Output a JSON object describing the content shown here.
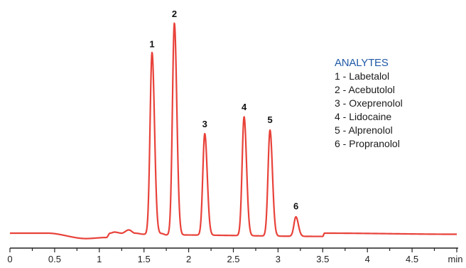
{
  "chart_data": {
    "type": "line",
    "title": "",
    "xlabel": "",
    "ylabel": "",
    "x_unit": "min",
    "xlim": [
      0,
      5
    ],
    "x_ticks": [
      "0",
      "0.5",
      "1",
      "1.5",
      "2",
      "2.5",
      "3",
      "3.5",
      "4",
      "4.5",
      "min"
    ],
    "y_scale": "relative",
    "grid": false,
    "line_color": "#e8423a",
    "baseline": 0.02,
    "baseline_points": [
      {
        "x": 0.0,
        "y": 0.02
      },
      {
        "x": 0.42,
        "y": 0.02
      },
      {
        "x": 0.85,
        "y": -0.005
      },
      {
        "x": 1.08,
        "y": 0.0
      },
      {
        "x": 1.12,
        "y": 0.02
      },
      {
        "x": 1.17,
        "y": 0.025
      },
      {
        "x": 1.25,
        "y": 0.02
      },
      {
        "x": 1.33,
        "y": 0.035
      },
      {
        "x": 1.4,
        "y": 0.02
      },
      {
        "x": 1.5,
        "y": 0.015
      },
      {
        "x": 1.7,
        "y": 0.018
      },
      {
        "x": 1.75,
        "y": 0.012
      },
      {
        "x": 3.5,
        "y": 0.005
      },
      {
        "x": 3.52,
        "y": 0.02
      },
      {
        "x": 5.0,
        "y": 0.015
      }
    ],
    "peaks": [
      {
        "label": "1",
        "x": 1.59,
        "height": 0.86
      },
      {
        "label": "2",
        "x": 1.84,
        "height": 1.0
      },
      {
        "label": "3",
        "x": 2.18,
        "height": 0.49
      },
      {
        "label": "4",
        "x": 2.62,
        "height": 0.57
      },
      {
        "label": "5",
        "x": 2.91,
        "height": 0.51
      },
      {
        "label": "6",
        "x": 3.2,
        "height": 0.11
      }
    ]
  },
  "legend": {
    "title": "ANALYTES",
    "items": [
      "1 - Labetalol",
      "2 - Acebutolol",
      "3 - Oxeprenolol",
      "4 - Lidocaine",
      "5 - Alprenolol",
      "6 - Propranolol"
    ]
  },
  "colors": {
    "trace": "#e8423a",
    "axis": "#222222",
    "legend_title": "#1f5aa6"
  }
}
